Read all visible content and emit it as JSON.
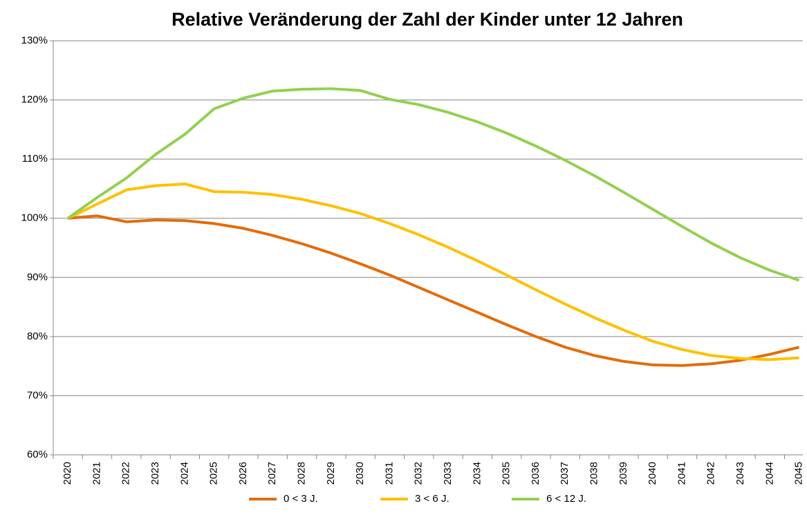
{
  "chart_data": {
    "type": "line",
    "title": "Relative Veränderung der Zahl der Kinder unter 12 Jahren",
    "categories": [
      "2020",
      "2021",
      "2022",
      "2023",
      "2024",
      "2025",
      "2026",
      "2027",
      "2028",
      "2029",
      "2030",
      "2031",
      "2032",
      "2033",
      "2034",
      "2035",
      "2036",
      "2037",
      "2038",
      "2039",
      "2040",
      "2041",
      "2042",
      "2043",
      "2044",
      "2045"
    ],
    "series": [
      {
        "name": "0 < 3 J.",
        "color": "#e36c0a",
        "values": [
          100,
          100.4,
          99.4,
          99.7,
          99.6,
          99.1,
          98.3,
          97.1,
          95.7,
          94.1,
          92.3,
          90.4,
          88.3,
          86.2,
          84.1,
          82.0,
          80.0,
          78.2,
          76.8,
          75.8,
          75.2,
          75.1,
          75.4,
          76.0,
          77.0,
          78.2
        ]
      },
      {
        "name": "3 < 6 J.",
        "color": "#ffc000",
        "values": [
          100,
          102.4,
          104.8,
          105.5,
          105.8,
          104.5,
          104.4,
          104.0,
          103.2,
          102.1,
          100.8,
          99.1,
          97.2,
          95.1,
          92.8,
          90.4,
          87.9,
          85.5,
          83.2,
          81.1,
          79.2,
          77.8,
          76.8,
          76.3,
          76.1,
          76.4
        ]
      },
      {
        "name": "6 < 12 J.",
        "color": "#92d050",
        "values": [
          100,
          103.5,
          106.8,
          110.8,
          114.2,
          118.5,
          120.3,
          121.5,
          121.8,
          121.9,
          121.6,
          120.1,
          119.2,
          117.9,
          116.3,
          114.4,
          112.2,
          109.8,
          107.2,
          104.4,
          101.5,
          98.6,
          95.8,
          93.3,
          91.2,
          89.5
        ]
      }
    ],
    "ylim": [
      60,
      130
    ],
    "yticks": [
      {
        "value": 60,
        "label": "60%"
      },
      {
        "value": 70,
        "label": "70%"
      },
      {
        "value": 80,
        "label": "80%"
      },
      {
        "value": 90,
        "label": "90%"
      },
      {
        "value": 100,
        "label": "100%"
      },
      {
        "value": 110,
        "label": "110%"
      },
      {
        "value": 120,
        "label": "120%"
      },
      {
        "value": 130,
        "label": "130%"
      }
    ],
    "grid": true,
    "legend": "bottom"
  }
}
